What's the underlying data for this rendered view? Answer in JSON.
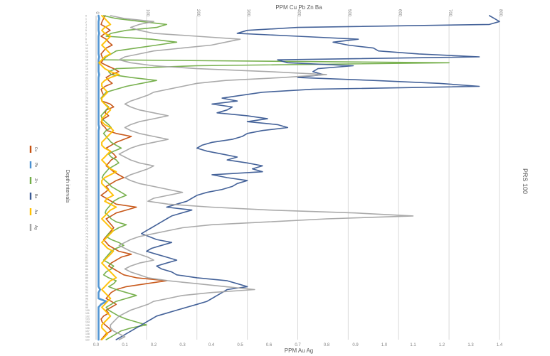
{
  "chart_data": {
    "type": "line",
    "orientation": "rotated-90",
    "title": "",
    "x_axis_top_label": "PPM Cu Pb Zn Ba",
    "x_axis_bottom_label": "PPM Au Ag",
    "right_label": "PRS 100",
    "legend_title": "Depth intervals",
    "legend_position": "left",
    "grid": true,
    "depth": {
      "min": 0,
      "max": 110,
      "direction": "top-to-bottom"
    },
    "top_axis": {
      "range": [
        0,
        800
      ],
      "ticks": [
        "0",
        "100",
        "200",
        "300",
        "400",
        "500",
        "600",
        "700",
        "800"
      ]
    },
    "bottom_axis": {
      "range": [
        0,
        1.4
      ],
      "ticks": [
        "0.0",
        "0.1",
        "0.2",
        "0.3",
        "0.4",
        "0.5",
        "0.6",
        "0.7",
        "0.8",
        "0.9",
        "1.0",
        "1.1",
        "1.2",
        "1.3",
        "1.4"
      ]
    },
    "series": [
      {
        "name": "Cu",
        "color": "#c5500f",
        "axis": "top",
        "values": [
          18,
          15,
          12,
          10,
          20,
          28,
          18,
          10,
          20,
          25,
          32,
          20,
          15,
          10,
          12,
          14,
          10,
          22,
          35,
          45,
          30,
          20,
          25,
          32,
          18,
          10,
          12,
          15,
          10,
          12,
          28,
          35,
          20,
          18,
          25,
          15,
          10,
          12,
          18,
          22,
          40,
          70,
          55,
          40,
          30,
          20,
          28,
          35,
          40,
          30,
          25,
          20,
          28,
          35,
          45,
          55,
          40,
          30,
          20,
          25,
          18,
          10,
          20,
          30,
          40,
          80,
          60,
          40,
          30,
          20,
          25,
          30,
          35,
          30,
          25,
          20,
          15,
          20,
          25,
          35,
          45,
          70,
          50,
          40,
          30,
          25,
          35,
          45,
          55,
          80,
          140,
          100,
          60,
          40,
          30,
          25,
          20,
          30,
          40,
          30,
          20,
          25,
          15,
          10,
          12,
          18,
          25,
          30,
          20,
          15,
          10
        ]
      },
      {
        "name": "Pb",
        "color": "#4a90d0",
        "axis": "top",
        "values": [
          5,
          6,
          5,
          5,
          5,
          5,
          6,
          5,
          5,
          5,
          5,
          5,
          5,
          5,
          6,
          5,
          5,
          5,
          5,
          5,
          6,
          5,
          5,
          5,
          5,
          5,
          5,
          5,
          5,
          5,
          5,
          5,
          5,
          5,
          5,
          5,
          5,
          5,
          6,
          5,
          5,
          5,
          5,
          5,
          5,
          5,
          5,
          5,
          5,
          5,
          5,
          5,
          5,
          5,
          5,
          5,
          5,
          5,
          5,
          5,
          5,
          5,
          5,
          5,
          5,
          5,
          5,
          5,
          5,
          5,
          5,
          5,
          5,
          5,
          5,
          5,
          5,
          5,
          5,
          5,
          5,
          5,
          5,
          5,
          5,
          5,
          5,
          5,
          5,
          5,
          5,
          5,
          5,
          8,
          5,
          5,
          5,
          20,
          10,
          5,
          5,
          5,
          5,
          5,
          5,
          5,
          5,
          5,
          5,
          5,
          5
        ]
      },
      {
        "name": "Zn",
        "color": "#72ad47",
        "axis": "top",
        "values": [
          15,
          40,
          90,
          140,
          120,
          60,
          30,
          20,
          110,
          160,
          120,
          80,
          40,
          30,
          20,
          15,
          700,
          200,
          40,
          25,
          30,
          70,
          120,
          90,
          60,
          40,
          20,
          15,
          10,
          12,
          18,
          25,
          20,
          15,
          10,
          12,
          18,
          25,
          30,
          20,
          15,
          20,
          25,
          30,
          40,
          50,
          35,
          25,
          30,
          40,
          45,
          35,
          25,
          20,
          15,
          12,
          18,
          25,
          30,
          40,
          50,
          60,
          45,
          35,
          30,
          25,
          20,
          18,
          25,
          30,
          40,
          60,
          45,
          35,
          25,
          20,
          30,
          45,
          55,
          40,
          30,
          25,
          20,
          15,
          25,
          35,
          30,
          20,
          15,
          25,
          40,
          35,
          25,
          40,
          60,
          80,
          60,
          40,
          30,
          20,
          25,
          35,
          45,
          60,
          80,
          100,
          70,
          50,
          40,
          30,
          20
        ]
      },
      {
        "name": "Ba",
        "color": "#3a5a94",
        "axis": "top",
        "values": [
          780,
          790,
          800,
          780,
          400,
          300,
          280,
          400,
          520,
          470,
          500,
          550,
          560,
          640,
          760,
          360,
          380,
          510,
          440,
          430,
          450,
          400,
          550,
          680,
          760,
          430,
          330,
          290,
          250,
          280,
          230,
          270,
          260,
          240,
          300,
          340,
          300,
          360,
          380,
          330,
          300,
          290,
          270,
          230,
          210,
          200,
          220,
          250,
          280,
          260,
          300,
          330,
          310,
          330,
          230,
          260,
          300,
          280,
          270,
          250,
          220,
          200,
          190,
          180,
          160,
          140,
          190,
          170,
          150,
          140,
          130,
          120,
          110,
          100,
          90,
          105,
          120,
          150,
          130,
          110,
          100,
          120,
          140,
          160,
          140,
          120,
          130,
          150,
          160,
          200,
          260,
          280,
          300,
          260,
          250,
          240,
          230,
          220,
          200,
          180,
          160,
          140,
          120,
          110,
          100,
          90,
          80,
          70,
          60,
          50,
          40
        ]
      },
      {
        "name": "Au",
        "color": "#ffc000",
        "axis": "bottom",
        "values": [
          0.02,
          0.03,
          0.04,
          0.05,
          0.03,
          0.02,
          0.03,
          0.05,
          0.04,
          0.03,
          0.02,
          0.03,
          0.04,
          0.05,
          0.03,
          0.02,
          0.01,
          0.02,
          0.03,
          0.05,
          0.08,
          0.05,
          0.03,
          0.02,
          0.02,
          0.03,
          0.04,
          0.03,
          0.02,
          0.02,
          0.03,
          0.04,
          0.05,
          0.04,
          0.03,
          0.02,
          0.02,
          0.03,
          0.05,
          0.06,
          0.05,
          0.04,
          0.03,
          0.02,
          0.02,
          0.03,
          0.05,
          0.04,
          0.03,
          0.02,
          0.03,
          0.04,
          0.05,
          0.07,
          0.05,
          0.03,
          0.02,
          0.02,
          0.03,
          0.04,
          0.05,
          0.06,
          0.04,
          0.03,
          0.05,
          0.07,
          0.05,
          0.04,
          0.03,
          0.02,
          0.03,
          0.04,
          0.05,
          0.06,
          0.05,
          0.04,
          0.03,
          0.02,
          0.03,
          0.04,
          0.06,
          0.05,
          0.04,
          0.03,
          0.02,
          0.03,
          0.04,
          0.05,
          0.06,
          0.07,
          0.05,
          0.04,
          0.03,
          0.02,
          0.03,
          0.04,
          0.05,
          0.04,
          0.03,
          0.02,
          0.03,
          0.04,
          0.05,
          0.04,
          0.03,
          0.02,
          0.02,
          0.03,
          0.04,
          0.03,
          0.02
        ]
      },
      {
        "name": "Ag",
        "color": "#a5a5a5",
        "axis": "bottom",
        "values": [
          0.05,
          0.1,
          0.2,
          0.15,
          0.12,
          0.15,
          0.2,
          0.35,
          0.5,
          0.45,
          0.4,
          0.3,
          0.2,
          0.15,
          0.1,
          0.08,
          0.12,
          0.2,
          0.35,
          0.6,
          0.8,
          0.65,
          0.45,
          0.35,
          0.3,
          0.25,
          0.2,
          0.18,
          0.15,
          0.12,
          0.1,
          0.12,
          0.15,
          0.2,
          0.25,
          0.2,
          0.15,
          0.12,
          0.1,
          0.12,
          0.15,
          0.2,
          0.25,
          0.2,
          0.15,
          0.12,
          0.1,
          0.08,
          0.1,
          0.12,
          0.15,
          0.2,
          0.18,
          0.15,
          0.12,
          0.1,
          0.12,
          0.15,
          0.2,
          0.25,
          0.3,
          0.25,
          0.2,
          0.18,
          0.25,
          0.4,
          0.6,
          0.9,
          1.1,
          0.8,
          0.6,
          0.4,
          0.3,
          0.25,
          0.2,
          0.15,
          0.12,
          0.1,
          0.08,
          0.1,
          0.12,
          0.15,
          0.18,
          0.2,
          0.15,
          0.12,
          0.1,
          0.12,
          0.15,
          0.18,
          0.25,
          0.35,
          0.45,
          0.55,
          0.4,
          0.3,
          0.25,
          0.2,
          0.18,
          0.15,
          0.12,
          0.1,
          0.08,
          0.07,
          0.06,
          0.05,
          0.05,
          0.06,
          0.08,
          0.1,
          0.08
        ]
      }
    ]
  }
}
